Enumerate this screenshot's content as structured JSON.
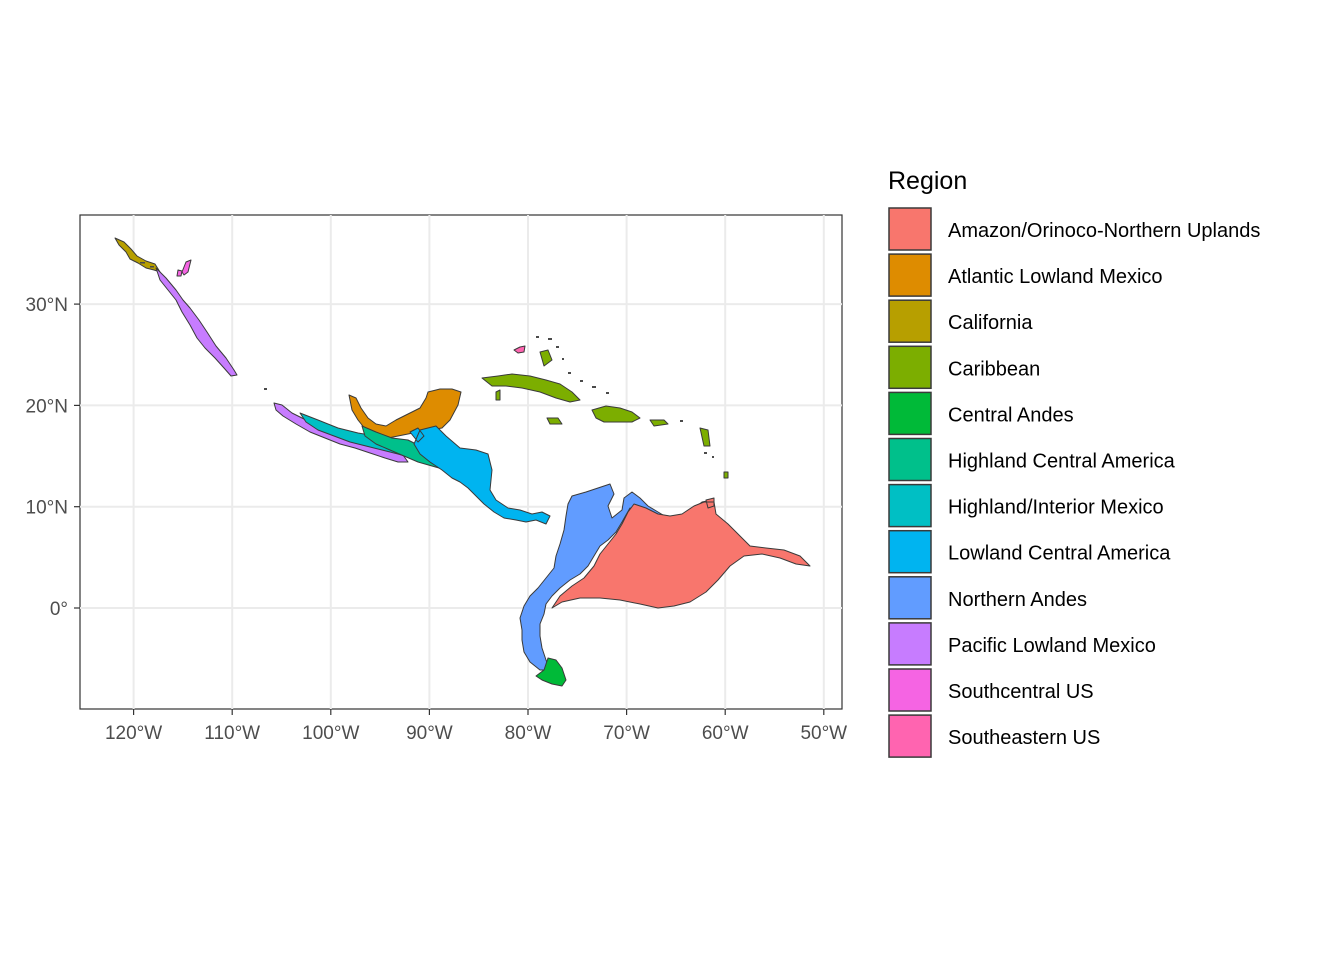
{
  "map": {
    "type": "choropleth-map",
    "x_axis": {
      "ticks": [
        {
          "value": -120,
          "label": "120°W"
        },
        {
          "value": -110,
          "label": "110°W"
        },
        {
          "value": -100,
          "label": "100°W"
        },
        {
          "value": -90,
          "label": "90°W"
        },
        {
          "value": -80,
          "label": "80°W"
        },
        {
          "value": -70,
          "label": "70°W"
        },
        {
          "value": -60,
          "label": "60°W"
        },
        {
          "value": -50,
          "label": "50°W"
        }
      ]
    },
    "y_axis": {
      "ticks": [
        {
          "value": 0,
          "label": "0°"
        },
        {
          "value": 10,
          "label": "10°N"
        },
        {
          "value": 20,
          "label": "20°N"
        },
        {
          "value": 30,
          "label": "30°N"
        }
      ]
    },
    "legend": {
      "title": "Region",
      "entries": [
        {
          "label": "Amazon/Orinoco-Northern Uplands",
          "color": "#F8766D"
        },
        {
          "label": "Atlantic Lowland Mexico",
          "color": "#DE8C00"
        },
        {
          "label": "California",
          "color": "#B79F00"
        },
        {
          "label": "Caribbean",
          "color": "#7CAE00"
        },
        {
          "label": "Central Andes",
          "color": "#00BA38"
        },
        {
          "label": "Highland Central America",
          "color": "#00C08B"
        },
        {
          "label": "Highland/Interior Mexico",
          "color": "#00BFC4"
        },
        {
          "label": "Lowland Central America",
          "color": "#00B4F0"
        },
        {
          "label": "Northern Andes",
          "color": "#619CFF"
        },
        {
          "label": "Pacific Lowland Mexico",
          "color": "#C77CFF"
        },
        {
          "label": "Southcentral US",
          "color": "#F564E3"
        },
        {
          "label": "Southeastern US",
          "color": "#FF64B0"
        }
      ]
    }
  }
}
